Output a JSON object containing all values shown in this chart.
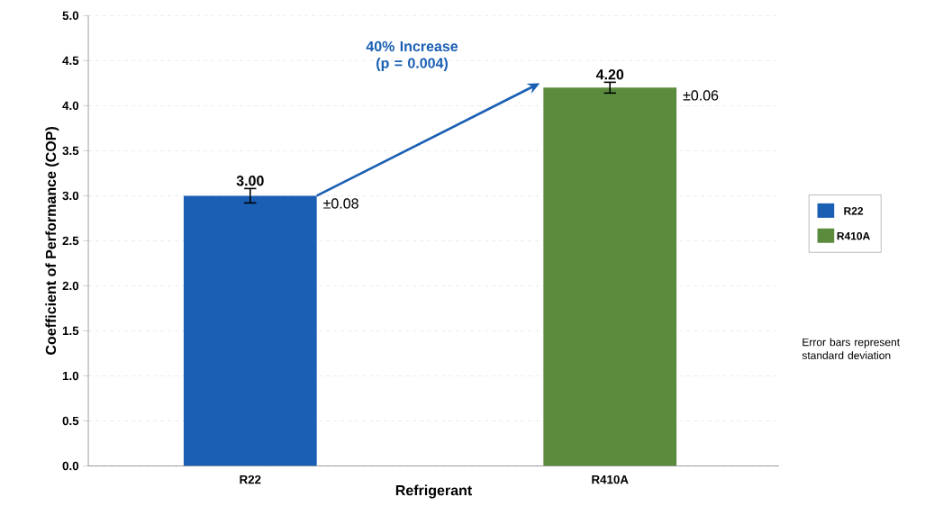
{
  "chart_data": {
    "type": "bar",
    "xlabel": "Refrigerant",
    "ylabel": "Coefficient of Performance (COP)",
    "categories": [
      "R22",
      "R410A"
    ],
    "series": [
      {
        "name": "R22",
        "color": "#1a5fb4",
        "values": [
          3.0,
          null
        ],
        "errors": [
          0.08,
          null
        ],
        "value_labels": [
          "3.00",
          null
        ]
      },
      {
        "name": "R410A",
        "color": "#5b8c3e",
        "values": [
          null,
          4.2
        ],
        "errors": [
          null,
          0.06
        ],
        "value_labels": [
          null,
          "4.20"
        ]
      }
    ],
    "ylim": [
      0,
      5
    ],
    "yticks": [
      {
        "value": 0,
        "label": "0.0"
      },
      {
        "value": 0.5,
        "label": "0.5"
      },
      {
        "value": 1,
        "label": "1.0"
      },
      {
        "value": 1.5,
        "label": "1.5"
      },
      {
        "value": 2,
        "label": "2.0"
      },
      {
        "value": 2.5,
        "label": "2.5"
      },
      {
        "value": 3,
        "label": "3.0"
      },
      {
        "value": 3.5,
        "label": "3.5"
      },
      {
        "value": 4,
        "label": "4.0"
      },
      {
        "value": 4.5,
        "label": "4.5"
      },
      {
        "value": 5,
        "label": "5.0"
      }
    ],
    "grid": "y",
    "legend": "right",
    "annotations": [
      "±0.08",
      "±0.06",
      "40% Increase (p = 0.004)",
      "Error bars represent standard deviation"
    ]
  }
}
